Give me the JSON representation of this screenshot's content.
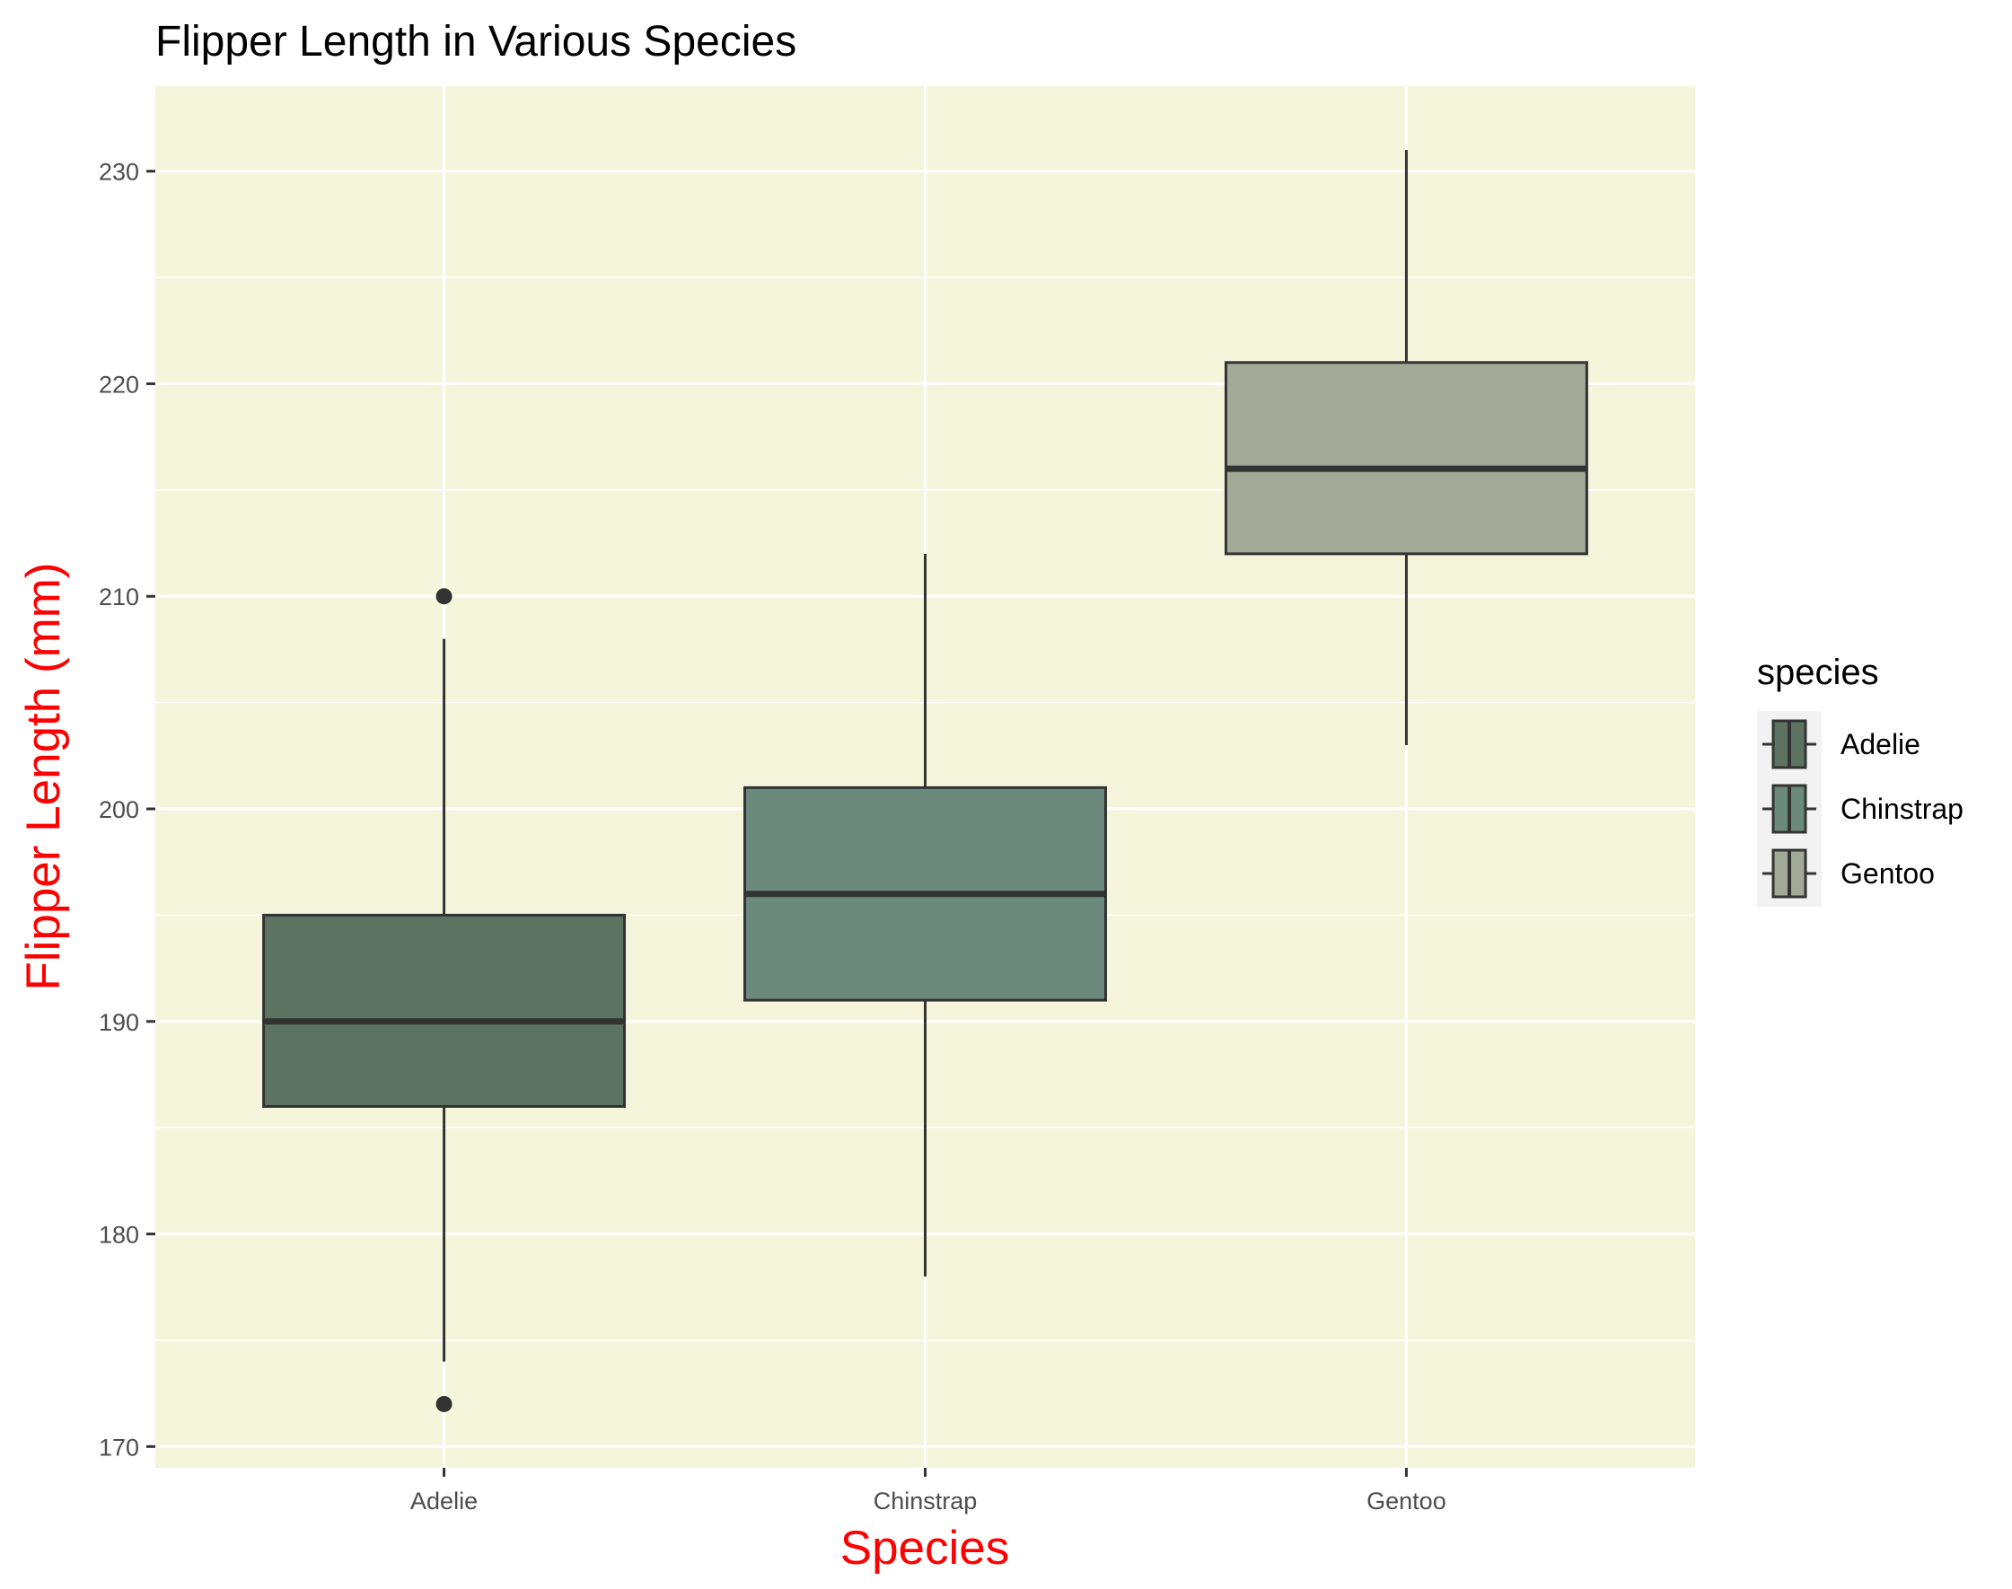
{
  "chart_data": {
    "type": "boxplot",
    "title": "Flipper Length in Various Species",
    "xlabel": "Species",
    "ylabel": "Flipper Length (mm)",
    "ylim": [
      169,
      234
    ],
    "y_ticks": [
      170,
      180,
      190,
      200,
      210,
      220,
      230
    ],
    "categories": [
      "Adelie",
      "Chinstrap",
      "Gentoo"
    ],
    "boxes": [
      {
        "category": "Adelie",
        "whisker_low": 174,
        "q1": 186,
        "median": 190,
        "q3": 195,
        "whisker_high": 208,
        "outliers": [
          210,
          172
        ]
      },
      {
        "category": "Chinstrap",
        "whisker_low": 178,
        "q1": 191,
        "median": 196,
        "q3": 201,
        "whisker_high": 212,
        "outliers": []
      },
      {
        "category": "Gentoo",
        "whisker_low": 203,
        "q1": 212,
        "median": 216,
        "q3": 221,
        "whisker_high": 231,
        "outliers": []
      }
    ],
    "legend": {
      "title": "species",
      "placement": "right",
      "entries": [
        "Adelie",
        "Chinstrap",
        "Gentoo"
      ]
    },
    "colors": {
      "Adelie": "#5c7362",
      "Chinstrap": "#6c897e",
      "Gentoo": "#a2a997",
      "panel_background": "#f5f5dc",
      "grid": "#ffffff",
      "box_stroke": "#333333",
      "axis_title": "#ff0000"
    },
    "grid": true
  }
}
